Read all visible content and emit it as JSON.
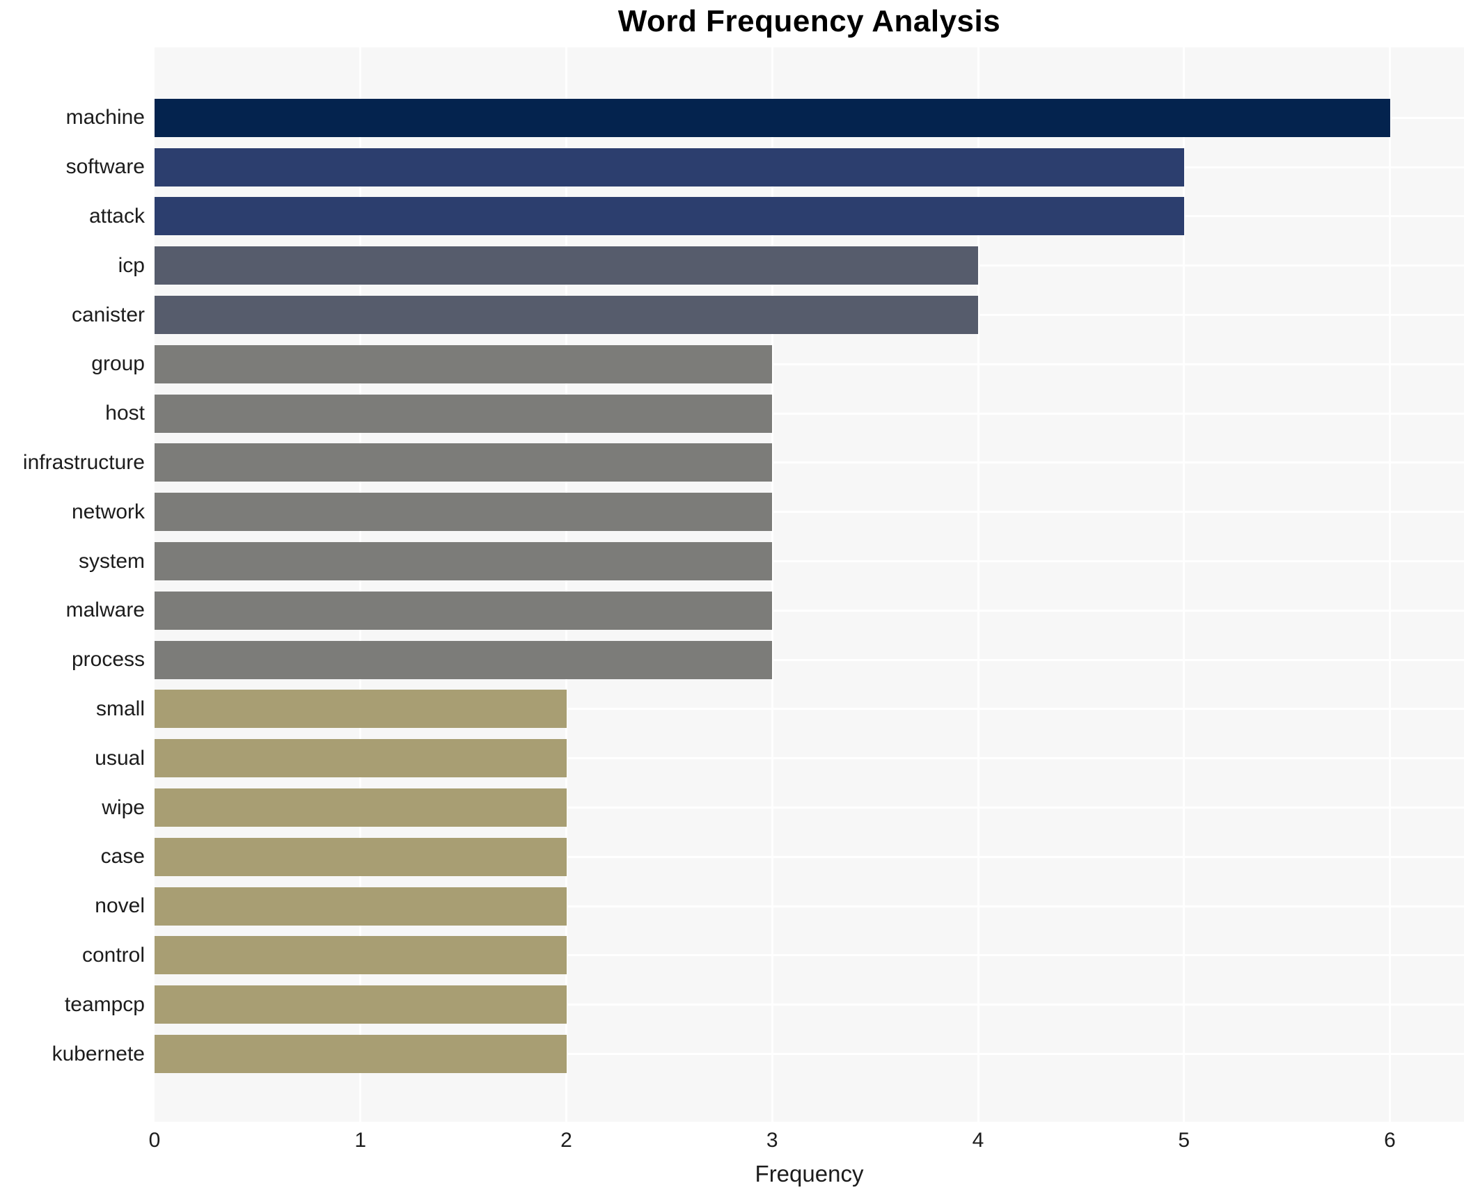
{
  "title": "Word Frequency Analysis",
  "chart_data": {
    "type": "bar",
    "orientation": "horizontal",
    "title": "Word Frequency Analysis",
    "xlabel": "Frequency",
    "ylabel": "",
    "categories": [
      "machine",
      "software",
      "attack",
      "icp",
      "canister",
      "group",
      "host",
      "infrastructure",
      "network",
      "system",
      "malware",
      "process",
      "small",
      "usual",
      "wipe",
      "case",
      "novel",
      "control",
      "teampcp",
      "kubernete"
    ],
    "values": [
      6,
      5,
      5,
      4,
      4,
      3,
      3,
      3,
      3,
      3,
      3,
      3,
      2,
      2,
      2,
      2,
      2,
      2,
      2,
      2
    ],
    "xticks": [
      0,
      1,
      2,
      3,
      4,
      5,
      6
    ],
    "xlim": [
      0,
      6.36
    ],
    "grid": true,
    "legend_position": "none",
    "colors": {
      "value_6": "#04234e",
      "value_5": "#2c3e6e",
      "value_4": "#565c6c",
      "value_3": "#7c7c79",
      "value_2": "#a89e73",
      "plot_background": "#f7f7f7",
      "gridline": "#ffffff",
      "text": "#1c1c1c"
    }
  }
}
